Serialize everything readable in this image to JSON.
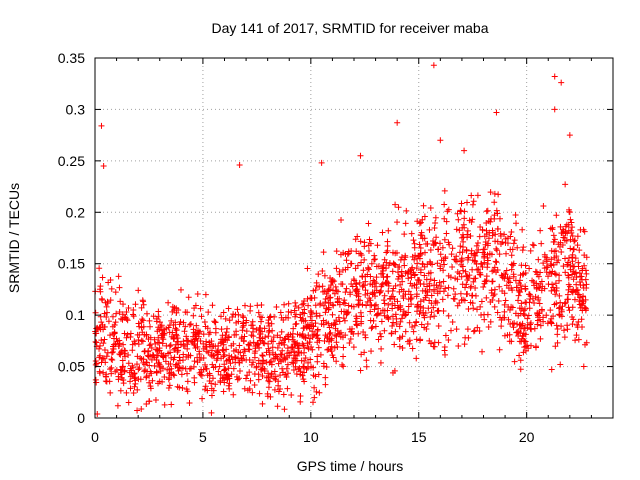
{
  "chart_data": {
    "type": "scatter",
    "title": "Day 141 of 2017, SRMTID for receiver maba",
    "xlabel": "GPS time / hours",
    "ylabel": "SRMTID / TECUs",
    "xlim": [
      0,
      24
    ],
    "ylim": [
      0,
      0.35
    ],
    "x_ticks": [
      0,
      5,
      10,
      15,
      20
    ],
    "x_tick_labels": [
      "0",
      "5",
      "10",
      "15",
      "20"
    ],
    "y_ticks": [
      0,
      0.05,
      0.1,
      0.15,
      0.2,
      0.25,
      0.3,
      0.35
    ],
    "y_tick_labels": [
      "0",
      "0.05",
      "0.1",
      "0.15",
      "0.2",
      "0.25",
      "0.3",
      "0.35"
    ],
    "grid": true,
    "marker": "plus",
    "marker_color": "#ff0000",
    "trend": [
      {
        "x": 0.0,
        "y_center": 0.085,
        "y_spread": 0.11
      },
      {
        "x": 0.5,
        "y_center": 0.08,
        "y_spread": 0.09
      },
      {
        "x": 1.0,
        "y_center": 0.07,
        "y_spread": 0.085
      },
      {
        "x": 2.0,
        "y_center": 0.065,
        "y_spread": 0.08
      },
      {
        "x": 3.0,
        "y_center": 0.06,
        "y_spread": 0.07
      },
      {
        "x": 4.0,
        "y_center": 0.07,
        "y_spread": 0.075
      },
      {
        "x": 5.0,
        "y_center": 0.065,
        "y_spread": 0.07
      },
      {
        "x": 6.0,
        "y_center": 0.06,
        "y_spread": 0.07
      },
      {
        "x": 7.0,
        "y_center": 0.07,
        "y_spread": 0.07
      },
      {
        "x": 8.0,
        "y_center": 0.06,
        "y_spread": 0.06
      },
      {
        "x": 9.0,
        "y_center": 0.065,
        "y_spread": 0.06
      },
      {
        "x": 10.0,
        "y_center": 0.085,
        "y_spread": 0.08
      },
      {
        "x": 11.0,
        "y_center": 0.1,
        "y_spread": 0.09
      },
      {
        "x": 12.0,
        "y_center": 0.11,
        "y_spread": 0.09
      },
      {
        "x": 13.0,
        "y_center": 0.115,
        "y_spread": 0.09
      },
      {
        "x": 14.0,
        "y_center": 0.12,
        "y_spread": 0.1
      },
      {
        "x": 15.0,
        "y_center": 0.13,
        "y_spread": 0.1
      },
      {
        "x": 16.0,
        "y_center": 0.14,
        "y_spread": 0.1
      },
      {
        "x": 17.0,
        "y_center": 0.14,
        "y_spread": 0.1
      },
      {
        "x": 18.0,
        "y_center": 0.15,
        "y_spread": 0.1
      },
      {
        "x": 19.0,
        "y_center": 0.14,
        "y_spread": 0.1
      },
      {
        "x": 20.0,
        "y_center": 0.11,
        "y_spread": 0.09
      },
      {
        "x": 21.0,
        "y_center": 0.13,
        "y_spread": 0.1
      },
      {
        "x": 22.0,
        "y_center": 0.15,
        "y_spread": 0.1
      },
      {
        "x": 22.7,
        "y_center": 0.12,
        "y_spread": 0.08
      }
    ],
    "notable_points": [
      {
        "x": 0.3,
        "y": 0.284
      },
      {
        "x": 0.4,
        "y": 0.245
      },
      {
        "x": 6.7,
        "y": 0.246
      },
      {
        "x": 14.0,
        "y": 0.287
      },
      {
        "x": 15.7,
        "y": 0.343
      },
      {
        "x": 16.0,
        "y": 0.27
      },
      {
        "x": 18.6,
        "y": 0.297
      },
      {
        "x": 21.3,
        "y": 0.332
      },
      {
        "x": 21.6,
        "y": 0.326
      },
      {
        "x": 21.3,
        "y": 0.3
      },
      {
        "x": 22.0,
        "y": 0.275
      },
      {
        "x": 17.1,
        "y": 0.26
      },
      {
        "x": 12.3,
        "y": 0.255
      },
      {
        "x": 10.5,
        "y": 0.248
      }
    ],
    "point_count": 2200,
    "x_range_of_points": [
      0,
      22.8
    ]
  }
}
